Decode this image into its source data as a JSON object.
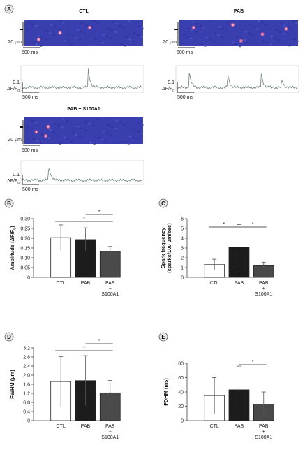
{
  "panel_a": {
    "letter": "A",
    "images": [
      {
        "title": "CTL",
        "scale_um": "20 µm",
        "scale_ms": "500 ms"
      },
      {
        "title": "PAB",
        "scale_um": "20 µm",
        "scale_ms": "500 ms"
      },
      {
        "title": "PAB + S100A1",
        "scale_um": "20 µm",
        "scale_ms": "500 ms"
      }
    ],
    "traces": [
      {
        "scale_value": "0.1",
        "scale_label": "ΔF/F",
        "scale_sub": "0",
        "scale_ms": "500 ms"
      },
      {
        "scale_value": "0.1",
        "scale_label": "ΔF/F",
        "scale_sub": "0",
        "scale_ms": "500 ms"
      },
      {
        "scale_value": "0.1",
        "scale_label": "ΔF/F",
        "scale_sub": "0",
        "scale_ms": "500 ms"
      }
    ]
  },
  "colors": {
    "ctl": "#ffffff",
    "pab": "#1c1c1c",
    "pab_s100a1": "#4a4a4a",
    "axis": "#444444",
    "trace": "#7b8a8a",
    "scan_bg": "#3a3fb0",
    "spark": "#ff6a8a"
  },
  "chart_data": [
    {
      "panel": "B",
      "type": "bar",
      "ylabel": "Amplitude (ΔF/F0)",
      "ylabel_main": "Amplitude (ΔF/F",
      "ylabel_sub": "0",
      "ylabel_end": ")",
      "categories": [
        [
          "CTL"
        ],
        [
          "PAB"
        ],
        [
          "PAB",
          "+",
          "S100A1"
        ]
      ],
      "values": [
        0.203,
        0.193,
        0.133
      ],
      "errors": [
        0.065,
        0.06,
        0.025
      ],
      "ylim": [
        0,
        0.3
      ],
      "yticks": [
        "0",
        "0.05",
        "0.10",
        "0.15",
        "0.20",
        "0.25",
        "0.30"
      ],
      "significance": [
        {
          "from": 0,
          "to": 2,
          "label": "*"
        },
        {
          "from": 1,
          "to": 2,
          "label": "*"
        }
      ]
    },
    {
      "panel": "C",
      "type": "bar",
      "ylabel": "Spark frequency (sparks/100 µm/sec)",
      "ylabel_main": "Spark frequency",
      "ylabel_line2": "(sparks/100 µm/sec)",
      "categories": [
        [
          "CTL"
        ],
        [
          "PAB"
        ],
        [
          "PAB",
          "+",
          "S100A1"
        ]
      ],
      "values": [
        1.3,
        3.1,
        1.2
      ],
      "errors": [
        0.55,
        2.3,
        0.35
      ],
      "ylim": [
        0,
        6
      ],
      "yticks": [
        "0",
        "1",
        "2",
        "3",
        "4",
        "5",
        "6"
      ],
      "significance": [
        {
          "from": 0,
          "to": 1,
          "label": "*"
        },
        {
          "from": 1,
          "to": 2,
          "label": "*"
        }
      ]
    },
    {
      "panel": "D",
      "type": "bar",
      "ylabel": "FWHM (µm)",
      "categories": [
        [
          "CTL"
        ],
        [
          "PAB"
        ],
        [
          "PAB",
          "+",
          "S100A1"
        ]
      ],
      "values": [
        1.72,
        1.76,
        1.22
      ],
      "errors": [
        1.1,
        1.1,
        0.55
      ],
      "ylim": [
        0,
        3.2
      ],
      "yticks": [
        "0",
        "0.4",
        "0.8",
        "1.2",
        "1.6",
        "2.0",
        "2.4",
        "2.8",
        "3.2"
      ],
      "significance": [
        {
          "from": 0,
          "to": 2,
          "label": "*"
        },
        {
          "from": 1,
          "to": 2,
          "label": "*"
        }
      ]
    },
    {
      "panel": "E",
      "type": "bar",
      "ylabel": "FDHM (ms)",
      "categories": [
        [
          "CTL"
        ],
        [
          "PAB"
        ],
        [
          "PAB",
          "+",
          "S100A1"
        ]
      ],
      "values": [
        35,
        43,
        23
      ],
      "errors": [
        25,
        33,
        17
      ],
      "ylim": [
        0,
        80
      ],
      "yticks": [
        "0",
        "20",
        "40",
        "60",
        "80"
      ],
      "significance": [
        {
          "from": 1,
          "to": 2,
          "label": "*"
        }
      ]
    }
  ]
}
